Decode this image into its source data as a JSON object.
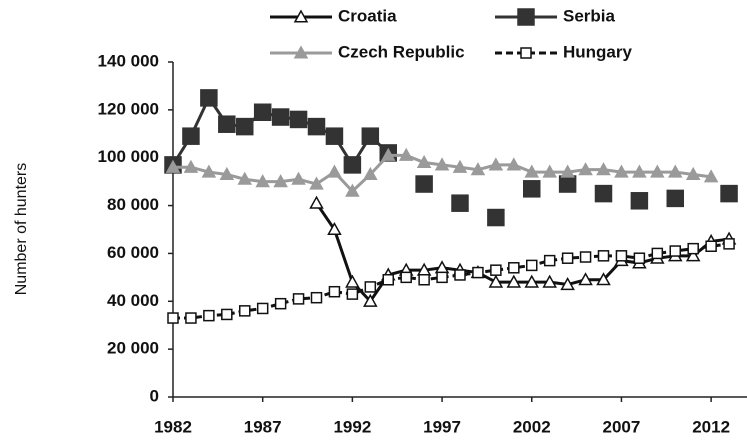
{
  "chart_data": {
    "type": "line",
    "y_label": "Number of hunters",
    "x": [
      1982,
      1983,
      1984,
      1985,
      1986,
      1987,
      1988,
      1989,
      1990,
      1991,
      1992,
      1993,
      1994,
      1995,
      1996,
      1997,
      1998,
      1999,
      2000,
      2001,
      2002,
      2003,
      2004,
      2005,
      2006,
      2007,
      2008,
      2009,
      2010,
      2011,
      2012,
      2013
    ],
    "xlim": [
      1982,
      2014
    ],
    "xticks": [
      1982,
      1987,
      1992,
      1997,
      2002,
      2007,
      2012
    ],
    "ylim": [
      0,
      140000
    ],
    "yticks": [
      0,
      {
        "value": 20000,
        "label": "20 000"
      },
      {
        "value": 40000,
        "label": "40 000"
      },
      {
        "value": 60000,
        "label": "60 000"
      },
      {
        "value": 80000,
        "label": "80 000"
      },
      {
        "value": 100000,
        "label": "100 000"
      },
      {
        "value": 120000,
        "label": "120 000"
      },
      {
        "value": 140000,
        "label": "140 000"
      }
    ],
    "legend": "top",
    "series": [
      {
        "name": "Croatia",
        "color": "#111111",
        "marker": "triangle-open",
        "dash": false,
        "values": [
          null,
          null,
          null,
          null,
          null,
          null,
          null,
          null,
          81000,
          70000,
          48000,
          40000,
          51000,
          53000,
          53000,
          54000,
          53000,
          52000,
          48000,
          48000,
          48000,
          48000,
          47000,
          49000,
          49000,
          57000,
          56000,
          58000,
          59000,
          59000,
          65000,
          66000
        ]
      },
      {
        "name": "Serbia",
        "color": "#333333",
        "marker": "square",
        "dash": false,
        "values": [
          97000,
          109000,
          125000,
          114000,
          113000,
          119000,
          117000,
          116000,
          113000,
          109000,
          97000,
          109000,
          102000,
          null,
          89000,
          null,
          81000,
          null,
          75000,
          null,
          87000,
          null,
          89000,
          null,
          85000,
          null,
          82000,
          null,
          83000,
          null,
          null,
          85000
        ]
      },
      {
        "name": "Czech Republic",
        "color": "#9a9a9a",
        "marker": "triangle",
        "dash": false,
        "values": [
          96000,
          96000,
          94000,
          93000,
          91000,
          90000,
          90000,
          91000,
          89000,
          94000,
          86000,
          93000,
          101000,
          101000,
          98000,
          97000,
          96000,
          95000,
          97000,
          97000,
          94000,
          94000,
          94000,
          95000,
          95000,
          94000,
          94000,
          94000,
          94000,
          93000,
          92000,
          null
        ]
      },
      {
        "name": "Hungary",
        "color": "#111111",
        "marker": "square-open",
        "dash": true,
        "values": [
          33000,
          33000,
          34000,
          34500,
          36000,
          37000,
          39000,
          41000,
          41500,
          44000,
          43000,
          46000,
          49000,
          50000,
          49000,
          50000,
          51000,
          52000,
          53000,
          54000,
          55000,
          57000,
          58000,
          58500,
          59000,
          59000,
          58000,
          60000,
          61000,
          62000,
          63000,
          64000
        ]
      }
    ]
  }
}
